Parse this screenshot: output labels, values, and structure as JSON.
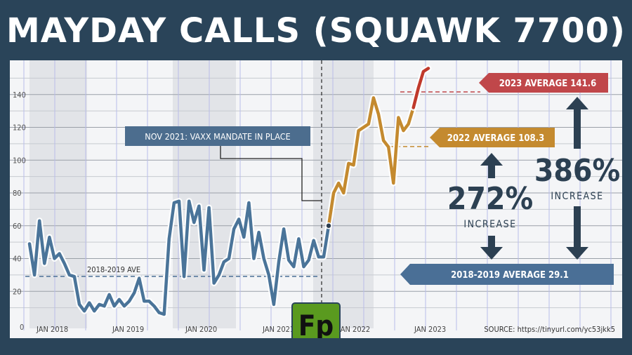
{
  "title": "MAYDAY CALLS (SQUAWK 7700)",
  "colors": {
    "background": "#2a4459",
    "blue_series": "#4a7499",
    "orange_series": "#c48a2f",
    "red_series": "#c0392b",
    "label_blue": "#4a6f96",
    "label_orange": "#c48a2f",
    "label_red": "#c0474a",
    "arrow_dark": "#2c4052",
    "logo_green": "#5a9a1f"
  },
  "chart_data": {
    "type": "line",
    "y_ticks": [
      "20",
      "40",
      "60",
      "80",
      "100",
      "120",
      "140"
    ],
    "y_zero_label": "0",
    "x_labels": [
      "JAN 2018",
      "JAN 2019",
      "JAN 2020",
      "JAN 2021",
      "JAN 2022",
      "JAN 2023"
    ],
    "ylim": [
      0,
      160
    ],
    "grid": true,
    "series": [
      {
        "color": "#4a7499",
        "values": [
          49,
          30,
          63,
          37,
          53,
          40,
          43,
          37,
          30,
          29,
          12,
          8,
          13,
          8,
          12,
          11,
          18,
          11,
          15,
          11,
          14,
          19,
          28,
          14,
          14,
          11,
          7,
          6,
          52,
          74,
          75,
          29,
          75,
          62,
          72,
          33,
          71,
          25,
          30,
          38,
          40,
          58,
          64,
          53,
          74,
          40,
          56,
          40,
          30,
          12,
          38,
          58,
          39,
          35,
          52,
          35,
          39,
          51,
          41,
          41,
          60
        ]
      },
      {
        "color": "#c48a2f",
        "values": [
          60,
          80,
          86,
          80,
          98,
          97,
          118,
          120,
          122,
          138,
          128,
          112,
          108,
          86,
          126,
          118,
          122,
          132
        ]
      },
      {
        "color": "#c0392b",
        "values": [
          132,
          144,
          154,
          156
        ]
      }
    ],
    "annotations": {
      "vaxx": "NOV 2021: VAXX MANDATE IN PLACE",
      "baseline": "2018-2019 AVE",
      "avg_2018_2019": "2018-2019 AVERAGE 29.1",
      "avg_2022": "2022 AVERAGE 108.3",
      "avg_2023": "2023 AVERAGE 141.6",
      "pct_272": "272%",
      "pct_386": "386%",
      "increase": "INCREASE",
      "source": "SOURCE: https://tinyurl.com/yc53jkk5"
    },
    "averages": {
      "a2018_2019": 29.1,
      "a2022": 108.3,
      "a2023": 141.6
    }
  },
  "logo_text": "Fp"
}
